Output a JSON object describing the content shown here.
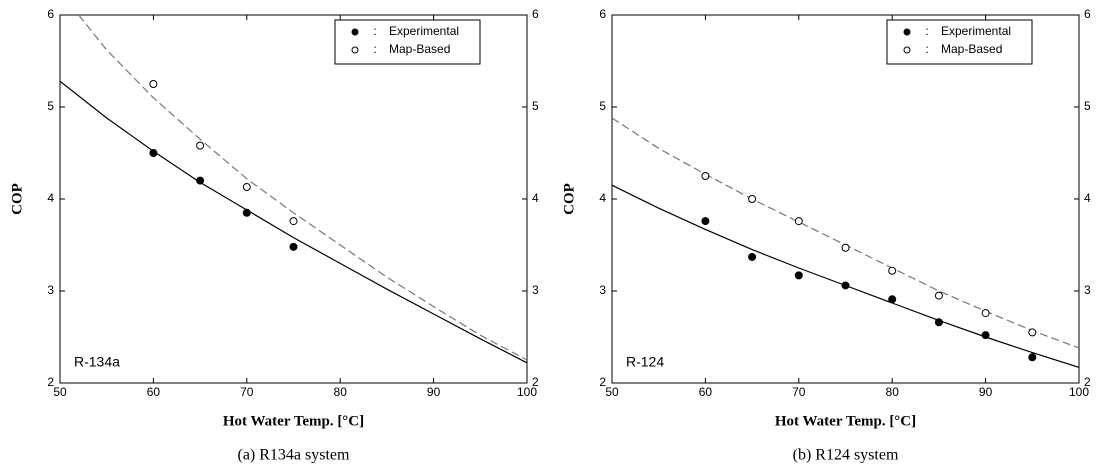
{
  "chart_data": [
    {
      "type": "scatter",
      "caption": "(a)  R134a  system",
      "xlabel": "Hot Water Temp. [°C]",
      "ylabel": "COP",
      "annotation": "R-134a",
      "xlim": [
        50,
        100
      ],
      "xticks": [
        50,
        60,
        70,
        80,
        90,
        100
      ],
      "ylim": [
        2,
        6
      ],
      "yticks": [
        2,
        3,
        4,
        5,
        6
      ],
      "y2lim": [
        2,
        6
      ],
      "y2ticks": [
        2,
        3,
        4,
        5,
        6
      ],
      "legend": "upper right",
      "legend_separator": ":",
      "series": [
        {
          "name": "Experimental",
          "marker": "filled",
          "line": "solid",
          "color": "#000000",
          "x": [
            60,
            65,
            70,
            75
          ],
          "values": [
            4.5,
            4.2,
            3.85,
            3.48
          ],
          "fit_x": [
            50,
            55,
            60,
            65,
            70,
            75,
            80,
            85,
            90,
            95,
            100
          ],
          "fit_values": [
            5.28,
            4.88,
            4.52,
            4.18,
            3.88,
            3.58,
            3.3,
            3.02,
            2.75,
            2.48,
            2.22
          ]
        },
        {
          "name": "Map-Based",
          "marker": "open",
          "line": "dashed",
          "color": "#000000",
          "x": [
            60,
            65,
            70,
            75
          ],
          "values": [
            5.25,
            4.58,
            4.13,
            3.76
          ],
          "fit_x": [
            52,
            55,
            60,
            65,
            70,
            75,
            80,
            85,
            90,
            95,
            100
          ],
          "fit_values": [
            6.0,
            5.62,
            5.1,
            4.65,
            4.22,
            3.85,
            3.5,
            3.15,
            2.83,
            2.52,
            2.25
          ]
        }
      ]
    },
    {
      "type": "scatter",
      "caption": "(b)  R124  system",
      "xlabel": "Hot Water Temp. [°C]",
      "ylabel": "COP",
      "annotation": "R-124",
      "xlim": [
        50,
        100
      ],
      "xticks": [
        50,
        60,
        70,
        80,
        90,
        100
      ],
      "ylim": [
        2,
        6
      ],
      "yticks": [
        2,
        3,
        4,
        5,
        6
      ],
      "y2lim": [
        2,
        6
      ],
      "y2ticks": [
        2,
        3,
        4,
        5,
        6
      ],
      "legend": "upper right",
      "legend_separator": ":",
      "series": [
        {
          "name": "Experimental",
          "marker": "filled",
          "line": "solid",
          "color": "#000000",
          "x": [
            60,
            65,
            70,
            75,
            80,
            85,
            90,
            95
          ],
          "values": [
            3.76,
            3.37,
            3.17,
            3.06,
            2.91,
            2.66,
            2.52,
            2.28
          ],
          "fit_x": [
            50,
            55,
            60,
            65,
            70,
            75,
            80,
            85,
            90,
            95,
            100
          ],
          "fit_values": [
            4.15,
            3.9,
            3.67,
            3.45,
            3.25,
            3.06,
            2.87,
            2.68,
            2.5,
            2.33,
            2.17
          ]
        },
        {
          "name": "Map-Based",
          "marker": "open",
          "line": "dashed",
          "color": "#000000",
          "x": [
            60,
            65,
            70,
            75,
            80,
            85,
            90,
            95
          ],
          "values": [
            4.25,
            4.0,
            3.76,
            3.47,
            3.22,
            2.95,
            2.76,
            2.55
          ],
          "fit_x": [
            50,
            55,
            60,
            65,
            70,
            75,
            80,
            85,
            90,
            95,
            100
          ],
          "fit_values": [
            4.88,
            4.55,
            4.27,
            4.0,
            3.75,
            3.5,
            3.25,
            3.0,
            2.78,
            2.57,
            2.38
          ]
        }
      ]
    }
  ]
}
